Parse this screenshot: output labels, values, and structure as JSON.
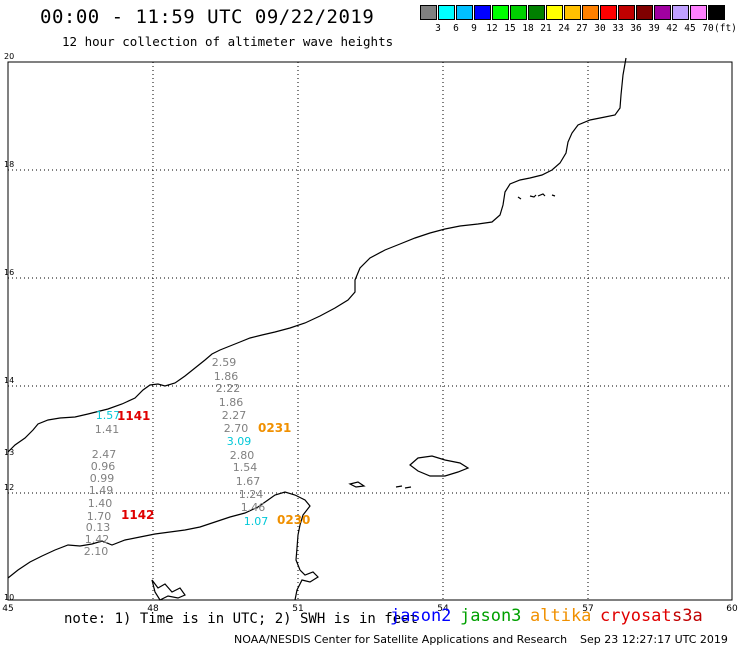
{
  "header": {
    "title": "00:00 - 11:59 UTC 09/22/2019",
    "subtitle": "12 hour collection of altimeter wave heights"
  },
  "color_scale": {
    "colors": [
      "#808080",
      "#00ffff",
      "#00c0ff",
      "#0000ff",
      "#00ff00",
      "#00d000",
      "#008000",
      "#ffff00",
      "#ffc000",
      "#ff8000",
      "#ff0000",
      "#c00000",
      "#800000",
      "#a000a0",
      "#c0a0ff",
      "#ff80ff",
      "#000000"
    ],
    "labels": [
      "3",
      "6",
      "9",
      "12",
      "15",
      "18",
      "21",
      "24",
      "27",
      "30",
      "33",
      "36",
      "39",
      "42",
      "45",
      "70"
    ],
    "unit": "(ft)"
  },
  "axes": {
    "lon_ticks": [
      "45",
      "48",
      "51",
      "54",
      "57",
      "60"
    ],
    "lat_ticks": [
      "20",
      "18",
      "16",
      "14",
      "12",
      "10"
    ],
    "lat_ticks_minor": [
      "13"
    ]
  },
  "tracks": [
    {
      "name": "track-a",
      "values": [
        "2.59",
        "1.86",
        "2.22",
        "1.86",
        "2.27",
        "2.70",
        "3.09",
        "2.80",
        "1.54",
        "1.67",
        "1.24",
        "1.46",
        "1.07"
      ],
      "colors": [
        "#808080",
        "#808080",
        "#808080",
        "#808080",
        "#808080",
        "#808080",
        "#00c8d8",
        "#808080",
        "#808080",
        "#808080",
        "#808080",
        "#808080",
        "#00c8d8"
      ]
    },
    {
      "name": "track-b",
      "values": [
        "1.57",
        "1.41",
        "2.47",
        "0.96",
        "0.99",
        "1.49",
        "1.40",
        "1.70",
        "0.13",
        "1.42",
        "2.10"
      ],
      "colors": [
        "#00c8d8",
        "#808080",
        "#808080",
        "#808080",
        "#808080",
        "#808080",
        "#808080",
        "#808080",
        "#808080",
        "#808080",
        "#808080"
      ]
    }
  ],
  "pass_times": [
    {
      "label": "1141",
      "color": "#e00000"
    },
    {
      "label": "1142",
      "color": "#e00000"
    },
    {
      "label": "0231",
      "color": "#f09000"
    },
    {
      "label": "0230",
      "color": "#f09000"
    }
  ],
  "footer": {
    "note": "note: 1) Time is in UTC; 2) SWH is in feet",
    "satellites": [
      {
        "name": "jason2",
        "color": "#0000ff"
      },
      {
        "name": "jason3",
        "color": "#00a000"
      },
      {
        "name": "altika",
        "color": "#f09000"
      },
      {
        "name": "cryosat",
        "color": "#e00000"
      },
      {
        "name": "s3a",
        "color": "#c00000"
      }
    ],
    "credit": "NOAA/NESDIS Center for Satellite Applications and Research",
    "timestamp": "Sep 23 12:27:17 UTC 2019"
  }
}
